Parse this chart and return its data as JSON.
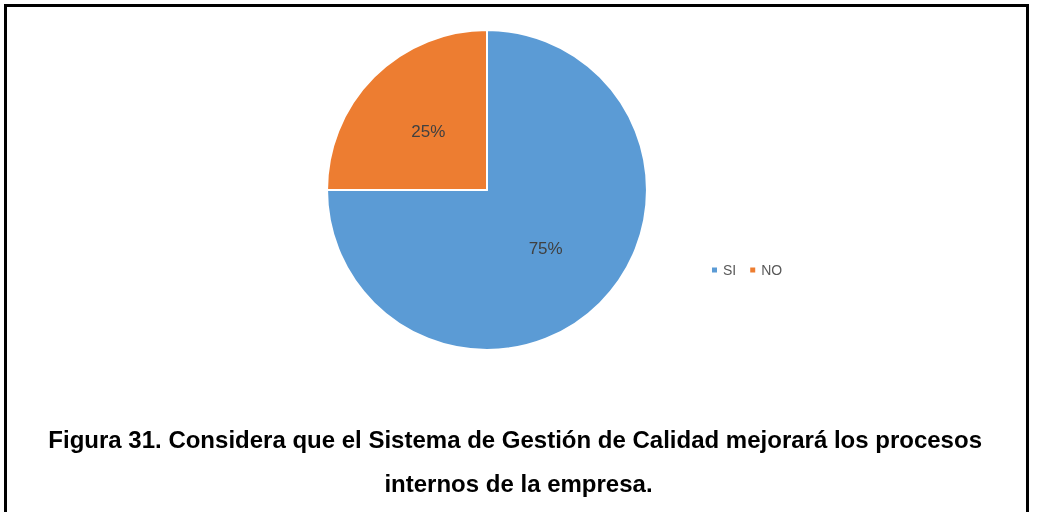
{
  "chart_data": {
    "type": "pie",
    "title": "Figura 31. Considera que el Sistema de Gestión de Calidad mejorará los procesos internos de la empresa.",
    "categories": [
      "SI",
      "NO"
    ],
    "values": [
      75,
      25
    ],
    "colors": [
      "#5b9bd5",
      "#ed7d31"
    ],
    "value_labels": [
      "75%",
      "25%"
    ],
    "legend": "right"
  }
}
